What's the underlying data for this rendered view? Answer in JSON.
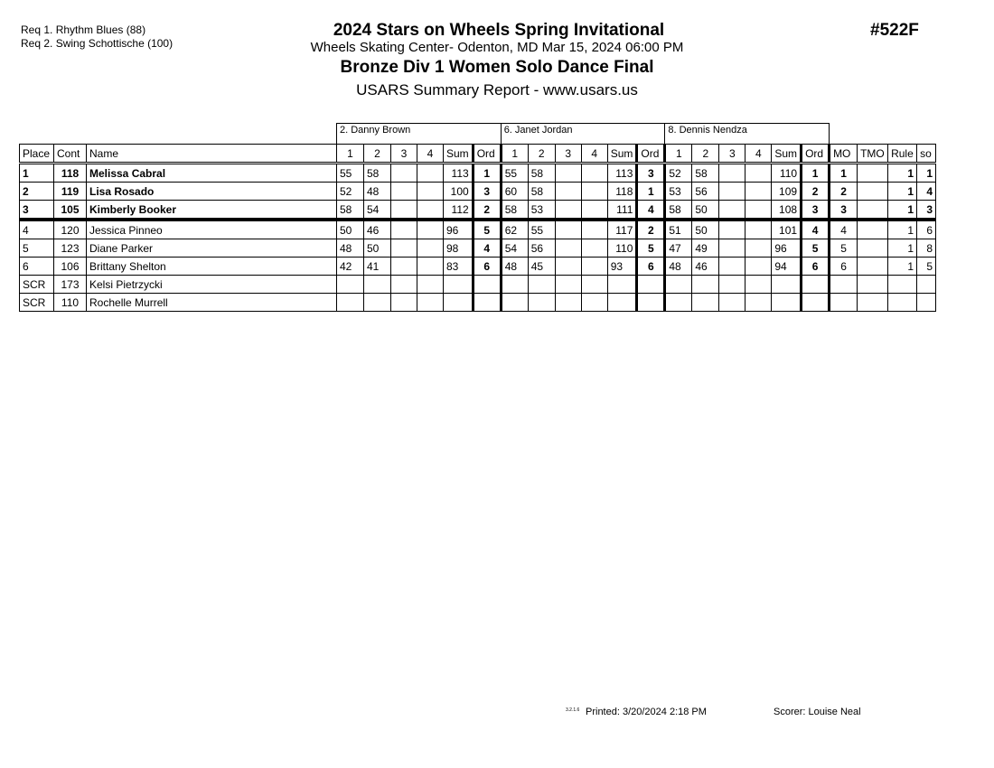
{
  "requirements": [
    "Req  1.  Rhythm Blues (88)",
    "Req  2.  Swing Schottische (100)"
  ],
  "title": "2024 Stars on Wheels Spring Invitational",
  "venue": "Wheels Skating Center- Odenton, MD  Mar 15, 2024  06:00 PM",
  "event": "Bronze Div 1 Women Solo Dance Final",
  "report": "USARS Summary Report - www.usars.us",
  "event_number": "#522F",
  "judges": [
    "2.  Danny Brown",
    "6.  Janet Jordan",
    "8.  Dennis Nendza"
  ],
  "headers": {
    "place": "Place",
    "cont": "Cont",
    "name": "Name",
    "judge_cols": [
      "1",
      "2",
      "3",
      "4",
      "Sum",
      "Ord"
    ],
    "mo": "MO",
    "tmo": "TMO",
    "rule": "Rule",
    "so": "so"
  },
  "rows": [
    {
      "place": "1",
      "cont": "118",
      "name": "Melissa Cabral",
      "bold": true,
      "j": [
        [
          "55",
          "58",
          "",
          "",
          "113",
          "1"
        ],
        [
          "55",
          "58",
          "",
          "",
          "113",
          "3"
        ],
        [
          "52",
          "58",
          "",
          "",
          "110",
          "1"
        ]
      ],
      "mo": "1",
      "tmo": "",
      "rule": "1",
      "so": "1"
    },
    {
      "place": "2",
      "cont": "119",
      "name": "Lisa Rosado",
      "bold": true,
      "j": [
        [
          "52",
          "48",
          "",
          "",
          "100",
          "3"
        ],
        [
          "60",
          "58",
          "",
          "",
          "118",
          "1"
        ],
        [
          "53",
          "56",
          "",
          "",
          "109",
          "2"
        ]
      ],
      "mo": "2",
      "tmo": "",
      "rule": "1",
      "so": "4"
    },
    {
      "place": "3",
      "cont": "105",
      "name": "Kimberly Booker",
      "bold": true,
      "j": [
        [
          "58",
          "54",
          "",
          "",
          "112",
          "2"
        ],
        [
          "58",
          "53",
          "",
          "",
          "111",
          "4"
        ],
        [
          "58",
          "50",
          "",
          "",
          "108",
          "3"
        ]
      ],
      "mo": "3",
      "tmo": "",
      "rule": "1",
      "so": "3"
    },
    {
      "place": "4",
      "cont": "120",
      "name": "Jessica Pinneo",
      "j": [
        [
          "50",
          "46",
          "",
          "",
          "96",
          "5"
        ],
        [
          "62",
          "55",
          "",
          "",
          "117",
          "2"
        ],
        [
          "51",
          "50",
          "",
          "",
          "101",
          "4"
        ]
      ],
      "mo": "4",
      "tmo": "",
      "rule": "1",
      "so": "6"
    },
    {
      "place": "5",
      "cont": "123",
      "name": "Diane Parker",
      "j": [
        [
          "48",
          "50",
          "",
          "",
          "98",
          "4"
        ],
        [
          "54",
          "56",
          "",
          "",
          "110",
          "5"
        ],
        [
          "47",
          "49",
          "",
          "",
          "96",
          "5"
        ]
      ],
      "mo": "5",
      "tmo": "",
      "rule": "1",
      "so": "8"
    },
    {
      "place": "6",
      "cont": "106",
      "name": "Brittany Shelton",
      "j": [
        [
          "42",
          "41",
          "",
          "",
          "83",
          "6"
        ],
        [
          "48",
          "45",
          "",
          "",
          "93",
          "6"
        ],
        [
          "48",
          "46",
          "",
          "",
          "94",
          "6"
        ]
      ],
      "mo": "6",
      "tmo": "",
      "rule": "1",
      "so": "5"
    },
    {
      "place": "SCR",
      "cont": "173",
      "name": "Kelsi Pietrzycki",
      "j": [
        [
          "",
          "",
          "",
          "",
          "",
          ""
        ],
        [
          "",
          "",
          "",
          "",
          "",
          ""
        ],
        [
          "",
          "",
          "",
          "",
          "",
          ""
        ]
      ],
      "mo": "",
      "tmo": "",
      "rule": "",
      "so": ""
    },
    {
      "place": "SCR",
      "cont": "110",
      "name": "Rochelle Murrell",
      "j": [
        [
          "",
          "",
          "",
          "",
          "",
          ""
        ],
        [
          "",
          "",
          "",
          "",
          "",
          ""
        ],
        [
          "",
          "",
          "",
          "",
          "",
          ""
        ]
      ],
      "mo": "",
      "tmo": "",
      "rule": "",
      "so": ""
    }
  ],
  "footer": {
    "version": "3.2.1.6",
    "printed": "Printed:  3/20/2024  2:18 PM",
    "scorer": "Scorer:   Louise Neal"
  }
}
